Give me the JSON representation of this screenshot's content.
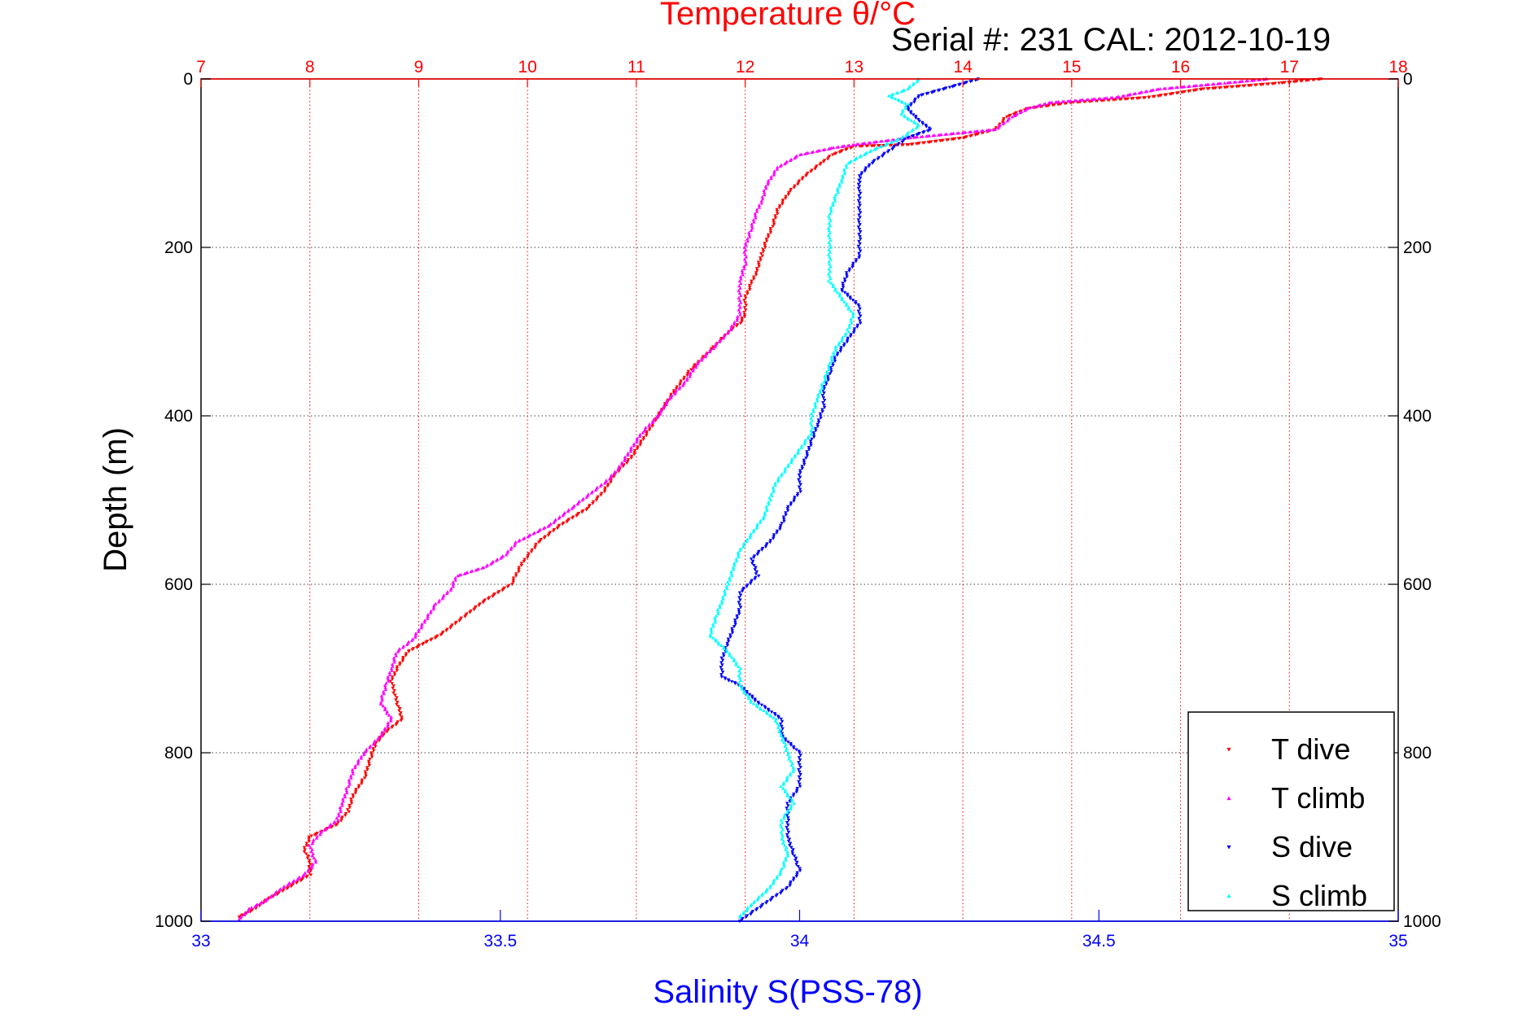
{
  "header": {
    "title": "Temperature θ/°C",
    "serial": "Serial #: 231  CAL: 2012-10-19"
  },
  "chart_data": {
    "type": "scatter",
    "y_axis": {
      "label": "Depth (m)",
      "range": [
        0,
        1000
      ],
      "reversed": true,
      "ticks": [
        0,
        200,
        400,
        600,
        800,
        1000
      ]
    },
    "top_axis": {
      "label": "Temperature θ/°C",
      "range": [
        7,
        18
      ],
      "ticks": [
        7,
        8,
        9,
        10,
        11,
        12,
        13,
        14,
        15,
        16,
        17,
        18
      ],
      "color": "#ff0000"
    },
    "bottom_axis": {
      "label": "Salinity S(PSS-78)",
      "range": [
        33,
        35
      ],
      "ticks": [
        33,
        33.5,
        34,
        34.5,
        35
      ],
      "color": "#0000ff"
    },
    "grid": true,
    "legend_position": "bottom-right",
    "series": [
      {
        "name": "T dive",
        "axis": "temperature",
        "color": "#ff0000",
        "marker": "triangle-down",
        "points": [
          [
            17.3,
            0
          ],
          [
            16.9,
            5
          ],
          [
            16.2,
            12
          ],
          [
            15.7,
            22
          ],
          [
            15.0,
            28
          ],
          [
            14.6,
            35
          ],
          [
            14.4,
            45
          ],
          [
            14.3,
            60
          ],
          [
            14.0,
            70
          ],
          [
            13.5,
            78
          ],
          [
            13.0,
            80
          ],
          [
            12.8,
            90
          ],
          [
            12.7,
            100
          ],
          [
            12.55,
            115
          ],
          [
            12.4,
            135
          ],
          [
            12.3,
            155
          ],
          [
            12.25,
            175
          ],
          [
            12.2,
            190
          ],
          [
            12.15,
            210
          ],
          [
            12.1,
            230
          ],
          [
            12.05,
            245
          ],
          [
            12.0,
            260
          ],
          [
            12.0,
            280
          ],
          [
            11.95,
            290
          ],
          [
            11.85,
            300
          ],
          [
            11.7,
            320
          ],
          [
            11.5,
            345
          ],
          [
            11.35,
            370
          ],
          [
            11.25,
            390
          ],
          [
            11.15,
            410
          ],
          [
            11.05,
            430
          ],
          [
            10.95,
            450
          ],
          [
            10.8,
            470
          ],
          [
            10.7,
            490
          ],
          [
            10.55,
            510
          ],
          [
            10.3,
            530
          ],
          [
            10.1,
            550
          ],
          [
            9.95,
            575
          ],
          [
            9.85,
            600
          ],
          [
            9.6,
            620
          ],
          [
            9.4,
            640
          ],
          [
            9.2,
            660
          ],
          [
            9.05,
            670
          ],
          [
            8.9,
            680
          ],
          [
            8.8,
            700
          ],
          [
            8.75,
            715
          ],
          [
            8.8,
            740
          ],
          [
            8.85,
            760
          ],
          [
            8.7,
            775
          ],
          [
            8.6,
            790
          ],
          [
            8.55,
            810
          ],
          [
            8.5,
            830
          ],
          [
            8.4,
            850
          ],
          [
            8.35,
            870
          ],
          [
            8.25,
            885
          ],
          [
            8.0,
            900
          ],
          [
            7.95,
            915
          ],
          [
            8.0,
            930
          ],
          [
            8.0,
            945
          ],
          [
            7.8,
            960
          ],
          [
            7.6,
            975
          ],
          [
            7.5,
            985
          ],
          [
            7.35,
            995
          ]
        ]
      },
      {
        "name": "T climb",
        "axis": "temperature",
        "color": "#ff00ff",
        "marker": "triangle-up",
        "points": [
          [
            16.8,
            0
          ],
          [
            16.4,
            5
          ],
          [
            15.8,
            12
          ],
          [
            15.4,
            22
          ],
          [
            14.8,
            28
          ],
          [
            14.6,
            35
          ],
          [
            14.45,
            45
          ],
          [
            14.3,
            60
          ],
          [
            13.5,
            70
          ],
          [
            13.0,
            78
          ],
          [
            12.8,
            82
          ],
          [
            12.5,
            90
          ],
          [
            12.3,
            105
          ],
          [
            12.2,
            125
          ],
          [
            12.15,
            145
          ],
          [
            12.1,
            160
          ],
          [
            12.05,
            180
          ],
          [
            12.0,
            200
          ],
          [
            12.0,
            220
          ],
          [
            11.95,
            240
          ],
          [
            11.95,
            260
          ],
          [
            11.95,
            280
          ],
          [
            11.85,
            300
          ],
          [
            11.7,
            320
          ],
          [
            11.55,
            340
          ],
          [
            11.45,
            360
          ],
          [
            11.3,
            380
          ],
          [
            11.2,
            400
          ],
          [
            11.05,
            420
          ],
          [
            10.95,
            440
          ],
          [
            10.85,
            460
          ],
          [
            10.75,
            475
          ],
          [
            10.6,
            490
          ],
          [
            10.4,
            510
          ],
          [
            10.2,
            530
          ],
          [
            9.9,
            550
          ],
          [
            9.8,
            565
          ],
          [
            9.6,
            580
          ],
          [
            9.35,
            590
          ],
          [
            9.3,
            605
          ],
          [
            9.15,
            625
          ],
          [
            9.05,
            645
          ],
          [
            8.95,
            665
          ],
          [
            8.8,
            680
          ],
          [
            8.75,
            700
          ],
          [
            8.7,
            720
          ],
          [
            8.65,
            740
          ],
          [
            8.75,
            760
          ],
          [
            8.65,
            780
          ],
          [
            8.5,
            800
          ],
          [
            8.4,
            820
          ],
          [
            8.35,
            840
          ],
          [
            8.3,
            860
          ],
          [
            8.25,
            880
          ],
          [
            8.1,
            895
          ],
          [
            8.0,
            910
          ],
          [
            8.05,
            930
          ],
          [
            7.95,
            945
          ],
          [
            7.75,
            960
          ],
          [
            7.6,
            975
          ],
          [
            7.45,
            985
          ],
          [
            7.35,
            998
          ]
        ]
      },
      {
        "name": "S dive",
        "axis": "salinity",
        "color": "#0000ff",
        "marker": "triangle-down",
        "points": [
          [
            34.3,
            0
          ],
          [
            34.25,
            10
          ],
          [
            34.2,
            20
          ],
          [
            34.18,
            35
          ],
          [
            34.2,
            50
          ],
          [
            34.22,
            60
          ],
          [
            34.18,
            70
          ],
          [
            34.15,
            85
          ],
          [
            34.12,
            100
          ],
          [
            34.1,
            115
          ],
          [
            34.1,
            130
          ],
          [
            34.1,
            150
          ],
          [
            34.1,
            170
          ],
          [
            34.1,
            190
          ],
          [
            34.1,
            210
          ],
          [
            34.08,
            230
          ],
          [
            34.07,
            250
          ],
          [
            34.1,
            270
          ],
          [
            34.1,
            290
          ],
          [
            34.08,
            310
          ],
          [
            34.06,
            330
          ],
          [
            34.05,
            350
          ],
          [
            34.04,
            370
          ],
          [
            34.04,
            390
          ],
          [
            34.03,
            410
          ],
          [
            34.02,
            430
          ],
          [
            34.01,
            450
          ],
          [
            34.0,
            470
          ],
          [
            34.0,
            490
          ],
          [
            33.98,
            510
          ],
          [
            33.97,
            530
          ],
          [
            33.95,
            550
          ],
          [
            33.92,
            570
          ],
          [
            33.93,
            590
          ],
          [
            33.9,
            610
          ],
          [
            33.9,
            630
          ],
          [
            33.89,
            650
          ],
          [
            33.88,
            670
          ],
          [
            33.87,
            690
          ],
          [
            33.87,
            710
          ],
          [
            33.9,
            720
          ],
          [
            33.93,
            740
          ],
          [
            33.97,
            760
          ],
          [
            33.97,
            780
          ],
          [
            34.0,
            800
          ],
          [
            34.0,
            820
          ],
          [
            34.0,
            840
          ],
          [
            33.98,
            860
          ],
          [
            33.98,
            880
          ],
          [
            33.98,
            900
          ],
          [
            33.99,
            920
          ],
          [
            34.0,
            940
          ],
          [
            33.98,
            960
          ],
          [
            33.95,
            975
          ],
          [
            33.92,
            990
          ],
          [
            33.9,
            1000
          ]
        ]
      },
      {
        "name": "S climb",
        "axis": "salinity",
        "color": "#00ffff",
        "marker": "triangle-up",
        "points": [
          [
            34.2,
            0
          ],
          [
            34.18,
            12
          ],
          [
            34.15,
            20
          ],
          [
            34.18,
            30
          ],
          [
            34.17,
            42
          ],
          [
            34.2,
            55
          ],
          [
            34.17,
            70
          ],
          [
            34.12,
            85
          ],
          [
            34.08,
            100
          ],
          [
            34.07,
            120
          ],
          [
            34.06,
            140
          ],
          [
            34.05,
            160
          ],
          [
            34.05,
            180
          ],
          [
            34.05,
            200
          ],
          [
            34.05,
            220
          ],
          [
            34.05,
            240
          ],
          [
            34.07,
            260
          ],
          [
            34.09,
            280
          ],
          [
            34.08,
            300
          ],
          [
            34.06,
            320
          ],
          [
            34.05,
            340
          ],
          [
            34.04,
            360
          ],
          [
            34.03,
            380
          ],
          [
            34.02,
            400
          ],
          [
            34.02,
            420
          ],
          [
            34.0,
            440
          ],
          [
            33.98,
            460
          ],
          [
            33.96,
            480
          ],
          [
            33.95,
            500
          ],
          [
            33.94,
            520
          ],
          [
            33.92,
            540
          ],
          [
            33.9,
            560
          ],
          [
            33.89,
            580
          ],
          [
            33.88,
            600
          ],
          [
            33.87,
            620
          ],
          [
            33.86,
            640
          ],
          [
            33.85,
            660
          ],
          [
            33.88,
            680
          ],
          [
            33.9,
            700
          ],
          [
            33.9,
            720
          ],
          [
            33.92,
            740
          ],
          [
            33.96,
            760
          ],
          [
            33.97,
            780
          ],
          [
            33.98,
            800
          ],
          [
            33.99,
            820
          ],
          [
            33.97,
            840
          ],
          [
            33.99,
            860
          ],
          [
            33.97,
            880
          ],
          [
            33.97,
            900
          ],
          [
            33.98,
            920
          ],
          [
            33.97,
            940
          ],
          [
            33.95,
            960
          ],
          [
            33.92,
            980
          ],
          [
            33.9,
            995
          ]
        ]
      }
    ]
  }
}
